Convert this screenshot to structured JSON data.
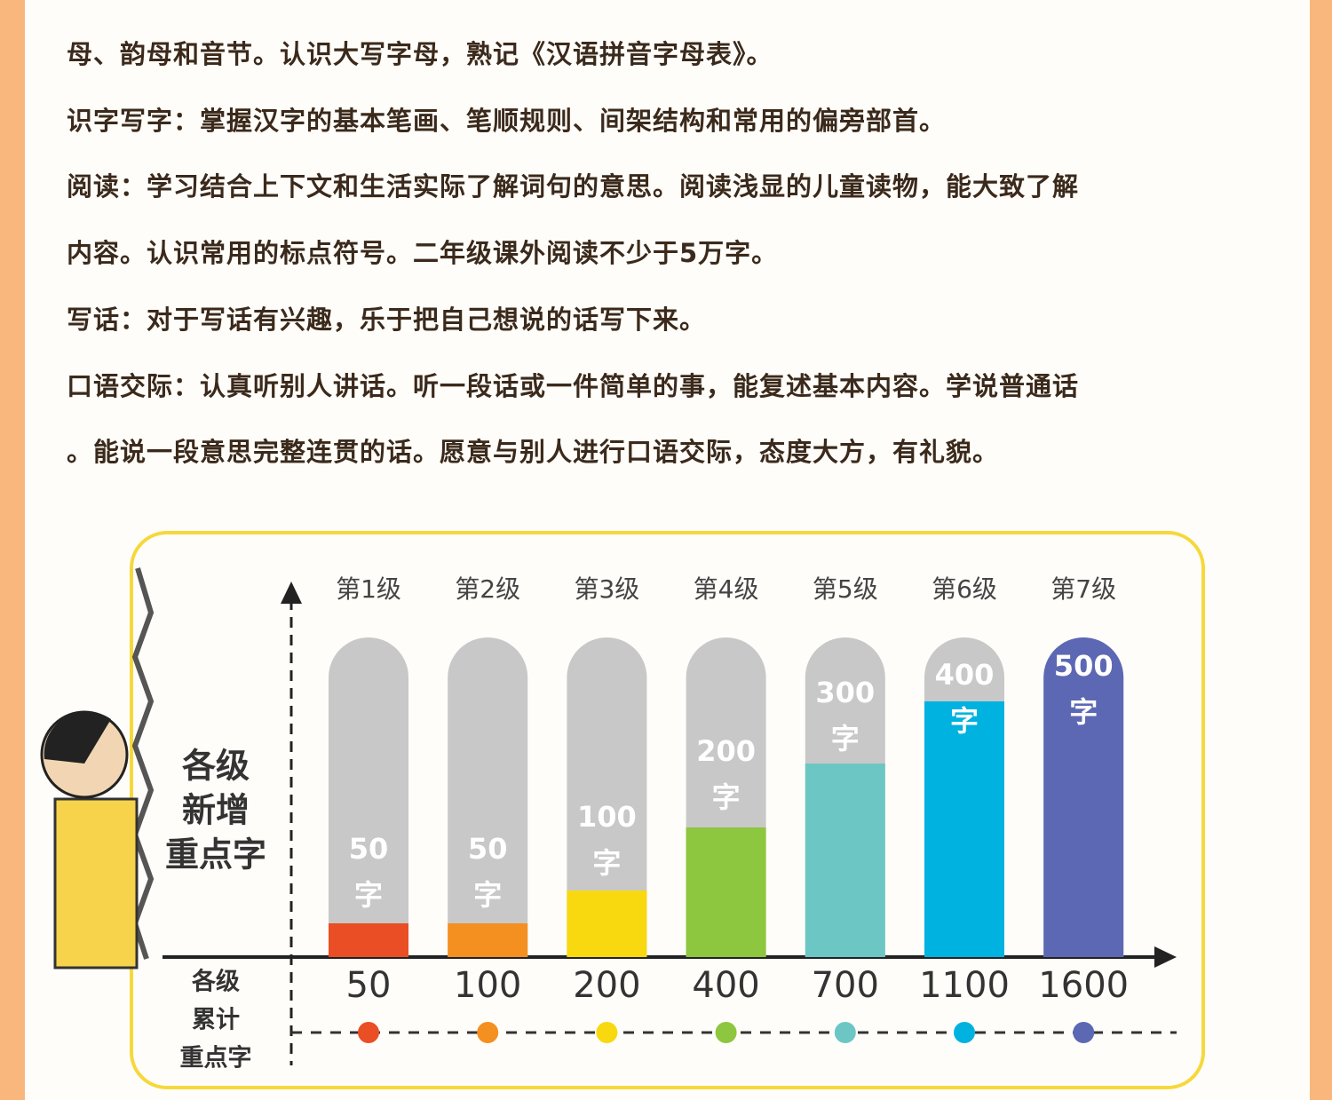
{
  "text_lines": [
    "母、韵母和音节。认识大写字母，熟记《汉语拼音字母表》。",
    "识字写字：掌握汉字的基本笔画、笔顺规则、间架结构和常用的偏旁部首。",
    "阅读：学习结合上下文和生活实际了解词句的意思。阅读浅显的儿童读物，能大致了解",
    "内容。认识常用的标点符号。二年级课外阅读不少于5万字。",
    "写话：对于写话有兴趣，乐于把自己想说的话写下来。",
    "口语交际：认真听别人讲话。听一段话或一件简单的事，能复述基本内容。学说普通话",
    "。能说一段意思完整连贯的话。愿意与别人进行口语交际，态度大方，有礼貌。"
  ],
  "infographic": {
    "new_label": [
      "各级",
      "新增",
      "重点字"
    ],
    "total_label": [
      "各级",
      "累计",
      "重点字"
    ],
    "unit": "字",
    "levels": [
      {
        "name": "第1级",
        "new": "50",
        "total": "50",
        "color": "#e94e24"
      },
      {
        "name": "第2级",
        "new": "50",
        "total": "100",
        "color": "#f39020"
      },
      {
        "name": "第3级",
        "new": "100",
        "total": "200",
        "color": "#f8d90f"
      },
      {
        "name": "第4级",
        "new": "200",
        "total": "400",
        "color": "#8dc63f"
      },
      {
        "name": "第5级",
        "new": "300",
        "total": "700",
        "color": "#6cc7c4"
      },
      {
        "name": "第6级",
        "new": "400",
        "total": "1100",
        "color": "#00b2e0"
      },
      {
        "name": "第7级",
        "new": "500",
        "total": "1600",
        "color": "#5d68b4"
      }
    ]
  }
}
